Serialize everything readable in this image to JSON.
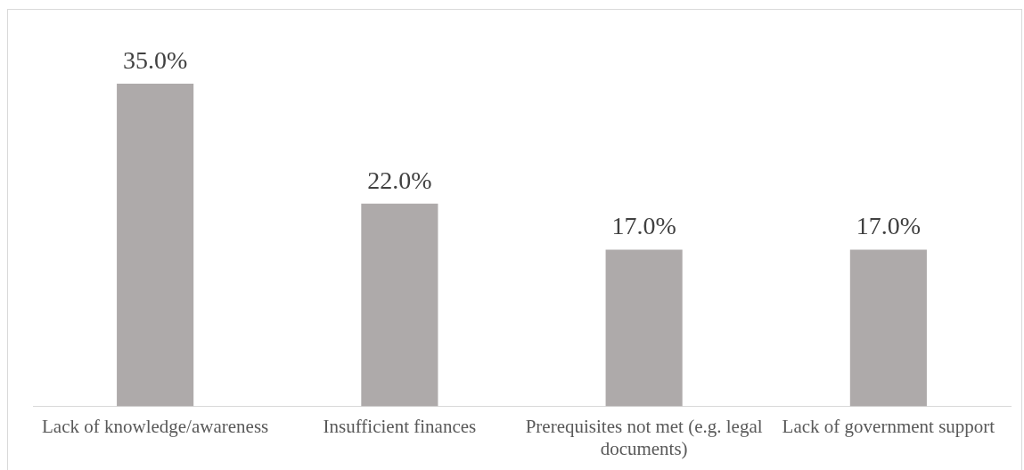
{
  "chart_data": {
    "type": "bar",
    "categories": [
      "Lack of knowledge/awareness",
      "Insufficient finances",
      "Prerequisites not met (e.g. legal documents)",
      "Lack of government support"
    ],
    "values": [
      35,
      22,
      17,
      17
    ],
    "value_labels": [
      "35.0%",
      "22.0%",
      "17.0%",
      "17.0%"
    ],
    "color": "#aeaaaa",
    "tick_labels": "x"
  }
}
